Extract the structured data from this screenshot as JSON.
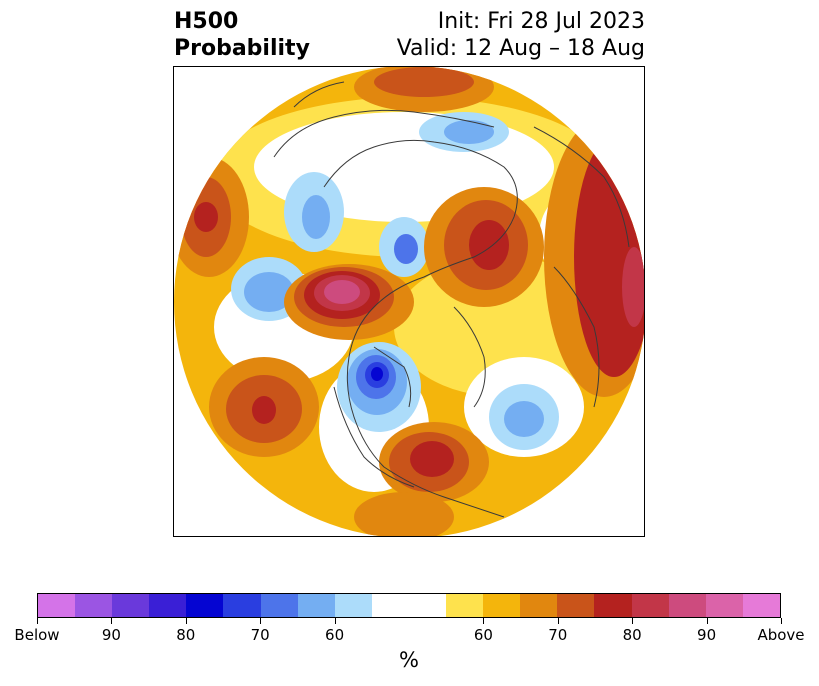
{
  "title": {
    "line1_left": "H500",
    "line2_left": "Probability",
    "line1_right": "Init: Fri 28 Jul 2023",
    "line2_right": "Valid: 12 Aug – 18 Aug"
  },
  "colors": {
    "below_scale": [
      "#d473e8",
      "#9b55e3",
      "#6a39db",
      "#3a1fd6",
      "#0505d2",
      "#2a3ee0",
      "#4d74ea",
      "#74aef2",
      "#acdcfa"
    ],
    "neutral": "#ffffff",
    "above_scale": [
      "#fee24d",
      "#f4b50c",
      "#e1870f",
      "#c9541a",
      "#b4221f",
      "#c23648",
      "#cd4b7e",
      "#db63a9",
      "#e67ad8"
    ]
  },
  "colorbar": {
    "unit": "%",
    "tick_labels": [
      "Below",
      "90",
      "80",
      "70",
      "60",
      "60",
      "70",
      "80",
      "90",
      "Above"
    ]
  },
  "map": {
    "projection": "north-polar-stereographic",
    "regions": "Northern Hemisphere land outlines and national/state borders"
  }
}
